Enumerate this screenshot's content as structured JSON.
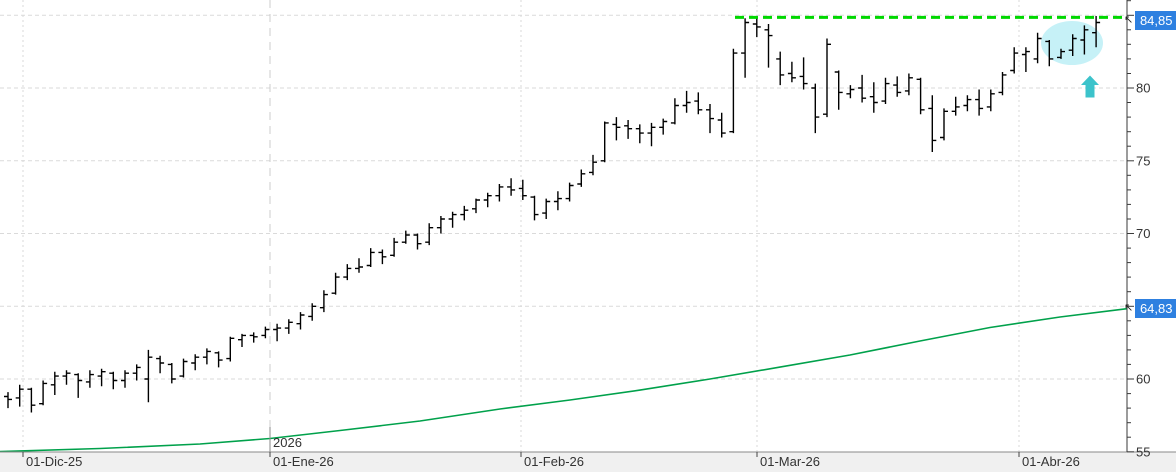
{
  "price_tags": {
    "last": "84,85",
    "ma": "64,83"
  },
  "colors": {
    "bar": "#000000",
    "ma_line": "#00a14b",
    "resistance": "#00d800",
    "highlight": "#c6f1f7",
    "arrow": "#3cc3cb",
    "price_tag_bg": "#2e80e0",
    "grid": "#dadada",
    "month_grid": "#d9d9d9",
    "year_grid": "#cccccc",
    "axis_text": "#333333",
    "axis_line": "#3a3a3a",
    "strip_bg": "#f0f0f0",
    "strip_border": "#8a8a8a"
  },
  "chart_data": {
    "type": "bar",
    "subtype": "ohlc-daily",
    "title": "",
    "x_tick_labels": [
      "01-Dic-25",
      "01-Ene-26",
      "01-Feb-26",
      "01-Mar-26",
      "01-Abr-26"
    ],
    "year_divider_label": "2026",
    "year_divider_tick_index": 1,
    "y_tick_labels_visible": [
      "80",
      "75",
      "70",
      "60",
      "55"
    ],
    "y_tick_values": [
      80,
      75,
      70,
      60,
      55
    ],
    "y_minor_step": 1,
    "ylim": [
      55,
      86.2
    ],
    "grid_price_levels": [
      85,
      80,
      75,
      70,
      65,
      60
    ],
    "legend": "none",
    "bars_ohlc": [
      [
        58.8,
        59.1,
        58.0,
        58.6
      ],
      [
        58.7,
        59.6,
        58.1,
        59.3
      ],
      [
        59.3,
        59.4,
        57.7,
        58.2
      ],
      [
        58.3,
        59.9,
        58.2,
        59.7
      ],
      [
        59.6,
        60.5,
        58.9,
        60.2
      ],
      [
        60.2,
        60.6,
        59.6,
        60.4
      ],
      [
        60.3,
        60.4,
        58.7,
        59.9
      ],
      [
        59.8,
        60.6,
        59.4,
        60.3
      ],
      [
        60.2,
        60.7,
        59.5,
        60.5
      ],
      [
        60.4,
        60.5,
        59.3,
        59.9
      ],
      [
        59.9,
        60.6,
        59.4,
        60.4
      ],
      [
        60.4,
        61.0,
        59.9,
        60.8
      ],
      [
        60.0,
        62.0,
        58.4,
        61.5
      ],
      [
        61.4,
        61.6,
        60.4,
        61.1
      ],
      [
        61.0,
        61.1,
        59.7,
        60.0
      ],
      [
        60.2,
        61.4,
        60.1,
        61.2
      ],
      [
        61.1,
        61.7,
        60.6,
        61.5
      ],
      [
        61.5,
        62.1,
        61.0,
        61.9
      ],
      [
        61.8,
        61.9,
        60.8,
        61.3
      ],
      [
        61.4,
        62.9,
        61.2,
        62.8
      ],
      [
        62.7,
        63.1,
        62.2,
        63.0
      ],
      [
        63.0,
        63.2,
        62.5,
        62.9
      ],
      [
        63.0,
        63.6,
        62.8,
        63.4
      ],
      [
        63.4,
        63.8,
        62.6,
        63.5
      ],
      [
        63.5,
        64.1,
        63.1,
        63.9
      ],
      [
        63.8,
        64.6,
        63.4,
        64.4
      ],
      [
        64.3,
        65.2,
        64.0,
        65.0
      ],
      [
        64.9,
        66.1,
        64.6,
        65.8
      ],
      [
        65.9,
        67.3,
        65.8,
        67.0
      ],
      [
        67.0,
        67.9,
        66.8,
        67.6
      ],
      [
        67.6,
        68.3,
        67.3,
        67.7
      ],
      [
        67.8,
        69.0,
        67.7,
        68.7
      ],
      [
        68.7,
        68.9,
        67.9,
        68.4
      ],
      [
        68.5,
        69.7,
        68.4,
        69.4
      ],
      [
        69.4,
        70.2,
        69.3,
        69.9
      ],
      [
        69.9,
        70.0,
        68.9,
        69.3
      ],
      [
        69.4,
        70.7,
        69.2,
        70.4
      ],
      [
        70.4,
        71.2,
        70.0,
        71.0
      ],
      [
        71.0,
        71.5,
        70.4,
        71.3
      ],
      [
        71.3,
        71.9,
        70.9,
        71.6
      ],
      [
        71.7,
        72.4,
        71.4,
        72.3
      ],
      [
        72.3,
        72.8,
        71.8,
        72.6
      ],
      [
        72.6,
        73.4,
        72.2,
        73.2
      ],
      [
        73.2,
        73.8,
        72.6,
        73.0
      ],
      [
        73.1,
        73.7,
        72.3,
        72.6
      ],
      [
        72.5,
        72.6,
        70.9,
        71.3
      ],
      [
        71.4,
        72.4,
        71.0,
        72.2
      ],
      [
        72.2,
        72.9,
        71.6,
        72.4
      ],
      [
        72.4,
        73.5,
        72.2,
        73.3
      ],
      [
        73.4,
        74.4,
        73.2,
        74.1
      ],
      [
        74.2,
        75.4,
        74.0,
        74.9
      ],
      [
        75.0,
        77.7,
        74.9,
        77.6
      ],
      [
        77.5,
        78.0,
        76.4,
        77.3
      ],
      [
        77.4,
        77.8,
        76.5,
        77.2
      ],
      [
        77.2,
        77.5,
        76.2,
        76.9
      ],
      [
        76.9,
        77.6,
        76.0,
        77.3
      ],
      [
        77.3,
        77.9,
        76.8,
        77.7
      ],
      [
        77.6,
        79.3,
        77.5,
        78.8
      ],
      [
        78.8,
        79.8,
        78.3,
        79.0
      ],
      [
        79.1,
        79.7,
        78.2,
        78.5
      ],
      [
        78.5,
        78.9,
        76.9,
        77.9
      ],
      [
        77.8,
        78.3,
        76.6,
        76.9
      ],
      [
        77.0,
        82.7,
        76.9,
        82.4
      ],
      [
        82.4,
        84.8,
        80.7,
        84.5
      ],
      [
        84.4,
        84.9,
        83.5,
        84.2
      ],
      [
        84.0,
        84.4,
        81.4,
        83.6
      ],
      [
        82.0,
        82.5,
        80.2,
        80.9
      ],
      [
        81.0,
        81.8,
        80.4,
        80.7
      ],
      [
        80.8,
        82.1,
        79.9,
        80.3
      ],
      [
        80.0,
        80.3,
        76.9,
        78.0
      ],
      [
        78.2,
        83.4,
        78.0,
        83.0
      ],
      [
        81.1,
        81.2,
        78.5,
        79.7
      ],
      [
        79.6,
        80.2,
        79.3,
        79.9
      ],
      [
        80.0,
        80.9,
        79.0,
        79.3
      ],
      [
        79.4,
        80.4,
        78.3,
        79.0
      ],
      [
        79.1,
        80.7,
        78.9,
        80.3
      ],
      [
        80.2,
        80.8,
        79.4,
        79.7
      ],
      [
        79.8,
        81.0,
        79.5,
        80.7
      ],
      [
        80.6,
        80.7,
        78.2,
        78.5
      ],
      [
        78.6,
        79.5,
        75.6,
        76.4
      ],
      [
        76.6,
        78.6,
        76.4,
        78.4
      ],
      [
        78.4,
        79.4,
        78.1,
        78.7
      ],
      [
        78.8,
        79.5,
        78.4,
        79.2
      ],
      [
        79.2,
        79.9,
        78.1,
        78.6
      ],
      [
        78.7,
        79.9,
        78.4,
        79.6
      ],
      [
        79.7,
        81.1,
        79.5,
        80.9
      ],
      [
        81.2,
        82.8,
        81.0,
        82.4
      ],
      [
        82.3,
        82.8,
        81.1,
        82.5
      ],
      [
        82.0,
        83.8,
        81.7,
        83.4
      ],
      [
        83.2,
        83.3,
        81.5,
        82.0
      ],
      [
        82.1,
        82.7,
        82.0,
        82.5
      ],
      [
        82.6,
        83.7,
        82.2,
        83.4
      ],
      [
        83.3,
        84.3,
        82.3,
        84.0
      ],
      [
        83.8,
        84.95,
        82.8,
        84.5
      ]
    ],
    "moving_average": {
      "label": "64,83",
      "points": [
        [
          0,
          55.01
        ],
        [
          100,
          55.22
        ],
        [
          200,
          55.53
        ],
        [
          270,
          55.91
        ],
        [
          340,
          56.46
        ],
        [
          420,
          57.11
        ],
        [
          500,
          57.94
        ],
        [
          570,
          58.56
        ],
        [
          640,
          59.24
        ],
        [
          710,
          60.0
        ],
        [
          780,
          60.82
        ],
        [
          850,
          61.65
        ],
        [
          920,
          62.61
        ],
        [
          990,
          63.54
        ],
        [
          1060,
          64.26
        ],
        [
          1127,
          64.83
        ]
      ]
    },
    "resistance": {
      "level": 84.85,
      "label": "84,85",
      "style": "dashed"
    },
    "annotations": {
      "highlight_ellipse": {
        "first_bar_index": 88,
        "last_bar_index": 93
      },
      "up_arrow": {
        "direction": "up",
        "at_price": 80,
        "below_bar_index": 92
      }
    }
  }
}
